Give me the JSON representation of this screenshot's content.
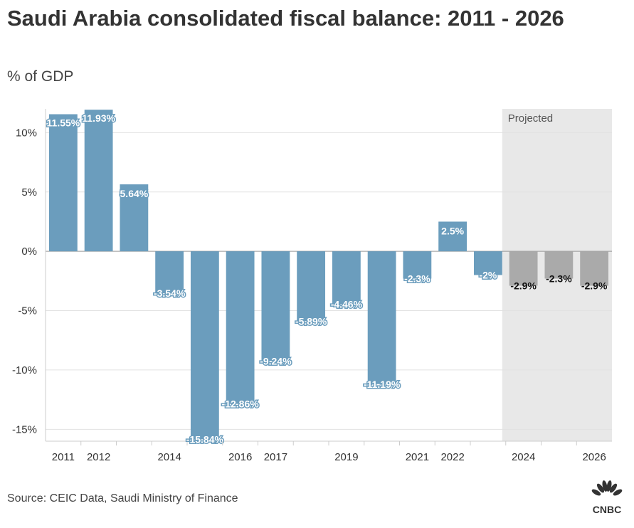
{
  "header": {
    "title": "Saudi Arabia consolidated fiscal balance: 2011 - 2026",
    "subtitle": "% of GDP"
  },
  "footer": {
    "source": "Source: CEIC Data, Saudi Ministry of Finance",
    "logo_text": "CNBC"
  },
  "colors": {
    "actual_bar": "#6b9dbd",
    "projected_bar": "#aaaaaa",
    "projected_band": "#e8e8e8",
    "gridline": "#e2e2e2",
    "zero_line": "#999999"
  },
  "chart_data": {
    "type": "bar",
    "title": "Saudi Arabia consolidated fiscal balance: 2011 - 2026",
    "subtitle": "% of GDP",
    "xlabel": "",
    "ylabel": "",
    "ylim": [
      -16,
      12
    ],
    "yticks": [
      10,
      5,
      0,
      -5,
      -10,
      -15
    ],
    "ytick_labels": [
      "10%",
      "5%",
      "0%",
      "-5%",
      "-10%",
      "-15%"
    ],
    "grid": true,
    "categories": [
      "2011",
      "2012",
      "2013",
      "2014",
      "2015",
      "2016",
      "2017",
      "2018",
      "2019",
      "2020",
      "2021",
      "2022",
      "2023",
      "2024",
      "2025",
      "2026"
    ],
    "x_tick_labels": [
      "2011",
      "2012",
      "",
      "2014",
      "",
      "2016",
      "2017",
      "",
      "2019",
      "",
      "2021",
      "2022",
      "",
      "2024",
      "",
      "2026"
    ],
    "values": [
      11.55,
      11.93,
      5.64,
      -3.54,
      -15.84,
      -12.86,
      -9.24,
      -5.89,
      -4.46,
      -11.19,
      -2.3,
      2.5,
      -2.0,
      -2.9,
      -2.3,
      -2.9
    ],
    "data_labels": [
      "11.55%",
      "11.93%",
      "5.64%",
      "-3.54%",
      "-15.84%",
      "-12.86%",
      "-9.24%",
      "-5.89%",
      "-4.46%",
      "-11.19%",
      "-2.3%",
      "2.5%",
      "-2%",
      "-2.9%",
      "-2.3%",
      "-2.9%"
    ],
    "projected_from_index": 13,
    "annotations": [
      {
        "text": "Projected",
        "region": "2024-2026"
      }
    ]
  }
}
